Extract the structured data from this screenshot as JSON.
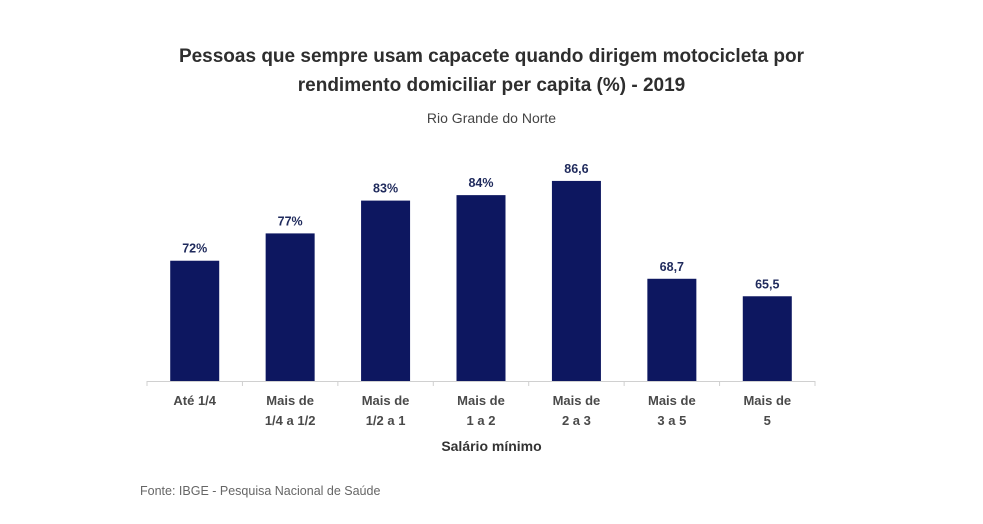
{
  "chart_data": {
    "type": "bar",
    "title": "Pessoas que sempre usam capacete quando dirigem motocicleta por rendimento domiciliar per capita (%) - 2019",
    "title_lines": [
      "Pessoas que sempre usam capacete quando dirigem motocicleta por",
      "rendimento domiciliar per capita (%) - 2019"
    ],
    "subtitle": "Rio Grande do Norte",
    "xlabel": "Salário mínimo",
    "ylabel": "",
    "categories": [
      [
        "Até 1/4"
      ],
      [
        "Mais de",
        "1/4 a 1/2"
      ],
      [
        "Mais de",
        "1/2 a 1"
      ],
      [
        "Mais de",
        "1 a 2"
      ],
      [
        "Mais de",
        "2 a 3"
      ],
      [
        "Mais de",
        "3 a 5"
      ],
      [
        "Mais de",
        "5"
      ]
    ],
    "values": [
      72,
      77,
      83,
      84,
      86.6,
      68.7,
      65.5
    ],
    "data_labels": [
      "72%",
      "77%",
      "83%",
      "84%",
      "86,6",
      "68,7",
      "65,5"
    ],
    "ylim": [
      0,
      100
    ],
    "grid": false,
    "legend": "none",
    "bar_color": "#0d1760",
    "label_color": "#1f2a5c"
  },
  "source": "Fonte: IBGE - Pesquisa Nacional de Saúde"
}
